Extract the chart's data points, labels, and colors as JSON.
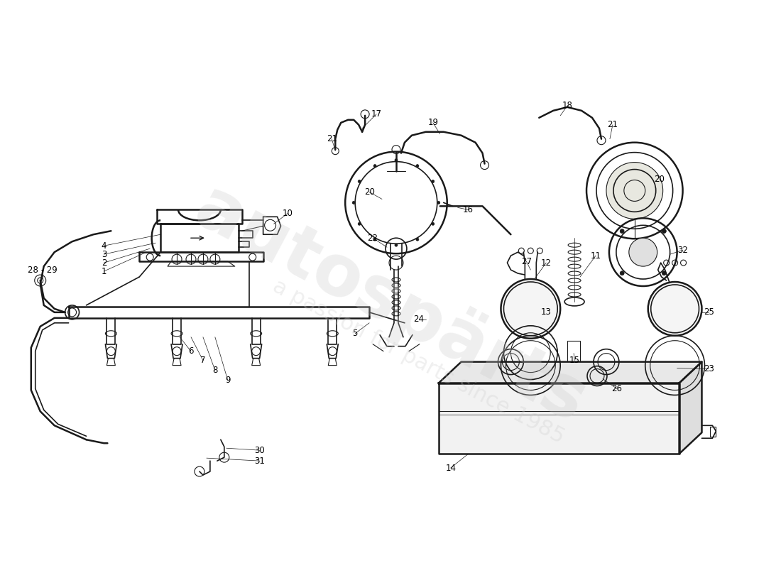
{
  "background_color": "#ffffff",
  "line_color": "#1a1a1a",
  "label_color": "#000000",
  "label_fontsize": 8.5,
  "fig_width": 11.0,
  "fig_height": 8.0,
  "dpi": 100
}
